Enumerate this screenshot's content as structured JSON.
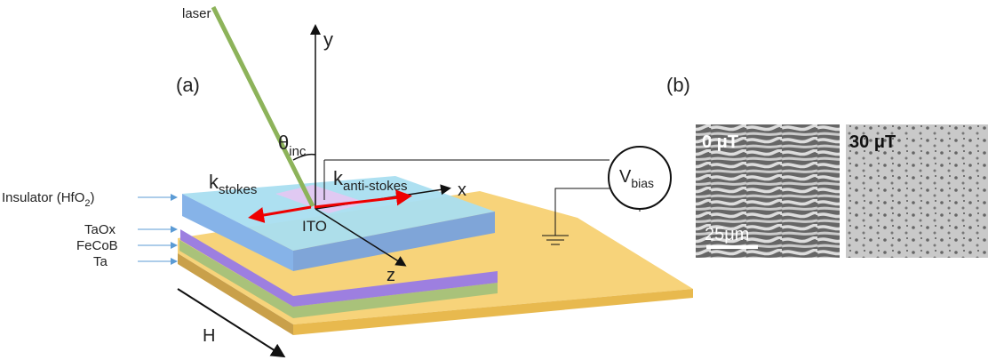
{
  "labels": {
    "laser": "laser",
    "y_axis": "y",
    "x_axis": "x",
    "z_axis": "z",
    "panel_a": "(a)",
    "panel_b": "(b)",
    "theta": {
      "base": "θ",
      "sub": "inc"
    },
    "k_stokes": {
      "base": "k",
      "sub": "stokes"
    },
    "k_anti_stokes": {
      "base": "k",
      "sub": "anti-stokes"
    },
    "v_bias": {
      "base": "V",
      "sub": "bias"
    },
    "ito": "ITO",
    "field": "H"
  },
  "layers": [
    {
      "label": "Insulator (HfO",
      "sub": "2",
      "suffix": ")"
    },
    {
      "label": "TaOx"
    },
    {
      "label": "FeCoB"
    },
    {
      "label": "Ta"
    }
  ],
  "images": [
    {
      "label": "0 μT",
      "scale_bar": "25μm"
    },
    {
      "label": "30 μT"
    }
  ]
}
